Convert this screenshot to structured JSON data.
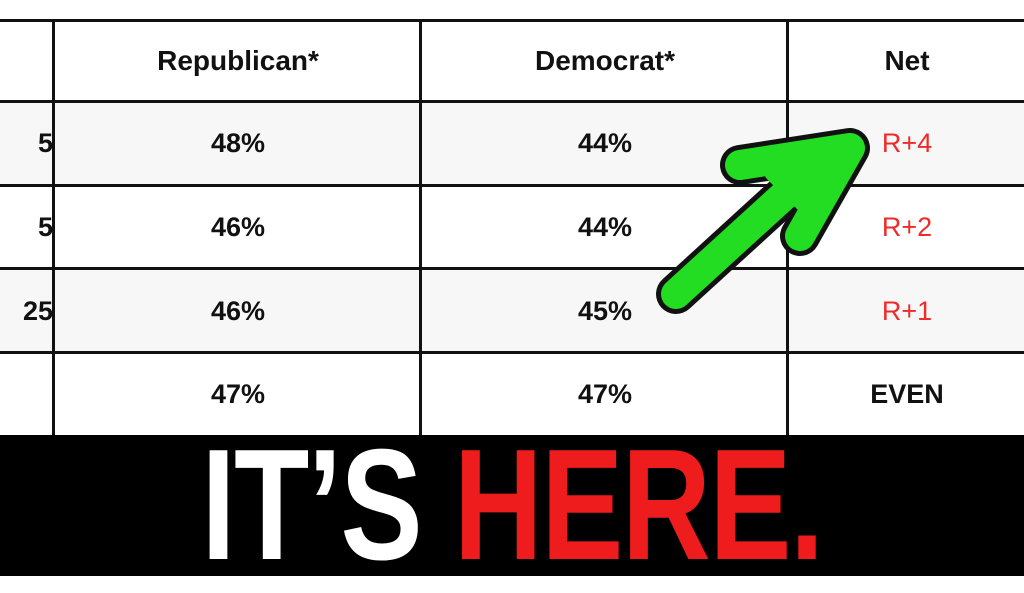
{
  "table": {
    "headers": [
      "",
      "Republican*",
      "Democrat*",
      "Net"
    ],
    "rows": [
      {
        "label": "5",
        "republican": "48%",
        "democrat": "44%",
        "net": "R+4",
        "net_color": "#ee2a2a"
      },
      {
        "label": "5",
        "republican": "46%",
        "democrat": "44%",
        "net": "R+2",
        "net_color": "#ee2a2a"
      },
      {
        "label": "25",
        "republican": "46%",
        "democrat": "45%",
        "net": "R+1",
        "net_color": "#ee2a2a"
      },
      {
        "label": "",
        "republican": "47%",
        "democrat": "47%",
        "net": "EVEN",
        "net_color": "#111111"
      }
    ]
  },
  "headline": {
    "part1": "IT’S",
    "part2": "HERE.",
    "part1_color": "#ffffff",
    "part2_color": "#ee1c1c"
  },
  "arrow": {
    "icon": "green-arrow-icon",
    "color": "#22dd22"
  }
}
